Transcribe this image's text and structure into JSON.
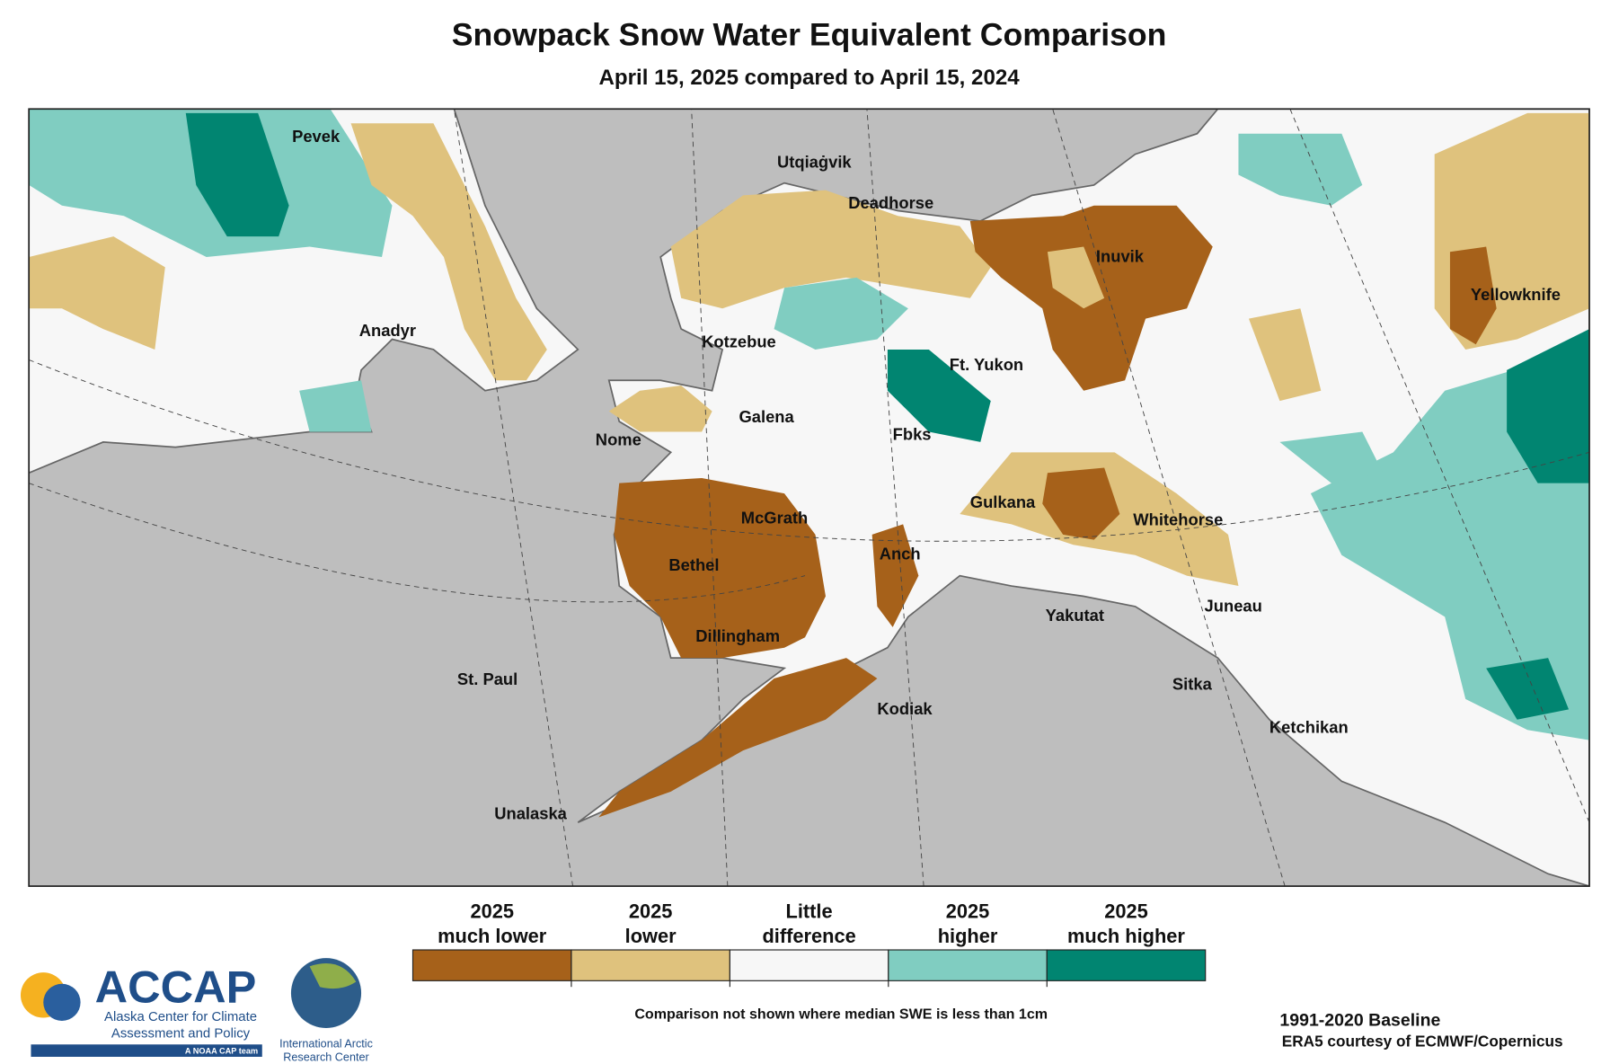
{
  "header": {
    "title": "Snowpack Snow Water Equivalent Comparison",
    "subtitle": "April 15, 2025 compared to April 15, 2024"
  },
  "map": {
    "places": [
      "Pevek",
      "Utqiaġvik",
      "Deadhorse",
      "Inuvik",
      "Yellowknife",
      "Anadyr",
      "Kotzebue",
      "Ft. Yukon",
      "Galena",
      "Nome",
      "Fbks",
      "McGrath",
      "Gulkana",
      "Whitehorse",
      "Anch",
      "Bethel",
      "Yakutat",
      "Juneau",
      "Dillingham",
      "St. Paul",
      "Kodiak",
      "Sitka",
      "Ketchikan",
      "Unalaska"
    ]
  },
  "legend": {
    "items": [
      {
        "label": [
          "2025",
          "much lower"
        ],
        "color": "#a6611a"
      },
      {
        "label": [
          "2025",
          "lower"
        ],
        "color": "#dfc27d"
      },
      {
        "label": [
          "Little",
          "difference"
        ],
        "color": "#f7f7f7"
      },
      {
        "label": [
          "2025",
          "higher"
        ],
        "color": "#80cdc1"
      },
      {
        "label": [
          "2025",
          "much higher"
        ],
        "color": "#018571"
      }
    ]
  },
  "footnote": "Comparison not shown where median SWE is less than 1cm",
  "credits": {
    "baseline": "1991-2020 Baseline",
    "source": "ERA5 courtesy of ECMWF/Copernicus"
  },
  "logos": {
    "accap": {
      "name": "ACCAP",
      "full": [
        "Alaska Center for Climate",
        "Assessment and Policy"
      ],
      "tag": "A NOAA CAP team"
    },
    "iarc": [
      "International Arctic",
      "Research Center"
    ]
  }
}
